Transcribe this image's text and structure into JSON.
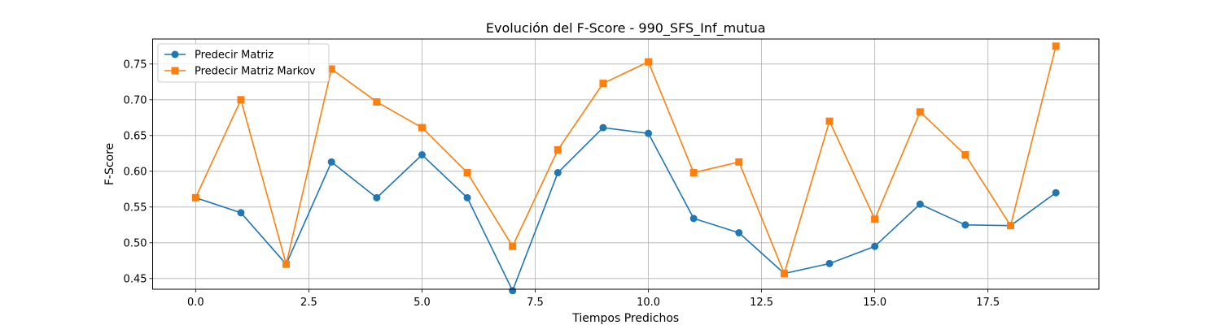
{
  "chart_data": {
    "type": "line",
    "title": "Evolución del F-Score - 990_SFS_Inf_mutua",
    "xlabel": "Tiempos Predichos",
    "ylabel": "F-Score",
    "xlim": [
      -0.95,
      19.95
    ],
    "ylim": [
      0.435,
      0.785
    ],
    "xticks": [
      0.0,
      2.5,
      5.0,
      7.5,
      10.0,
      12.5,
      15.0,
      17.5
    ],
    "xtick_labels": [
      "0.0",
      "2.5",
      "5.0",
      "7.5",
      "10.0",
      "12.5",
      "15.0",
      "17.5"
    ],
    "yticks": [
      0.45,
      0.5,
      0.55,
      0.6,
      0.65,
      0.7,
      0.75
    ],
    "ytick_labels": [
      "0.45",
      "0.50",
      "0.55",
      "0.60",
      "0.65",
      "0.70",
      "0.75"
    ],
    "grid": true,
    "legend_position": "top-left",
    "x": [
      0,
      1,
      2,
      3,
      4,
      5,
      6,
      7,
      8,
      9,
      10,
      11,
      12,
      13,
      14,
      15,
      16,
      17,
      18,
      19
    ],
    "series": [
      {
        "name": "Predecir Matriz",
        "color": "#1f77b4",
        "marker": "circle",
        "values": [
          0.563,
          0.542,
          0.47,
          0.613,
          0.563,
          0.623,
          0.563,
          0.433,
          0.598,
          0.661,
          0.653,
          0.534,
          0.514,
          0.457,
          0.471,
          0.495,
          0.554,
          0.525,
          0.524,
          0.57
        ]
      },
      {
        "name": "Predecir Matriz Markov",
        "color": "#ff7f0e",
        "marker": "square",
        "values": [
          0.563,
          0.7,
          0.47,
          0.743,
          0.697,
          0.661,
          0.598,
          0.495,
          0.63,
          0.723,
          0.753,
          0.598,
          0.613,
          0.457,
          0.67,
          0.533,
          0.683,
          0.623,
          0.524,
          0.775
        ]
      }
    ]
  }
}
